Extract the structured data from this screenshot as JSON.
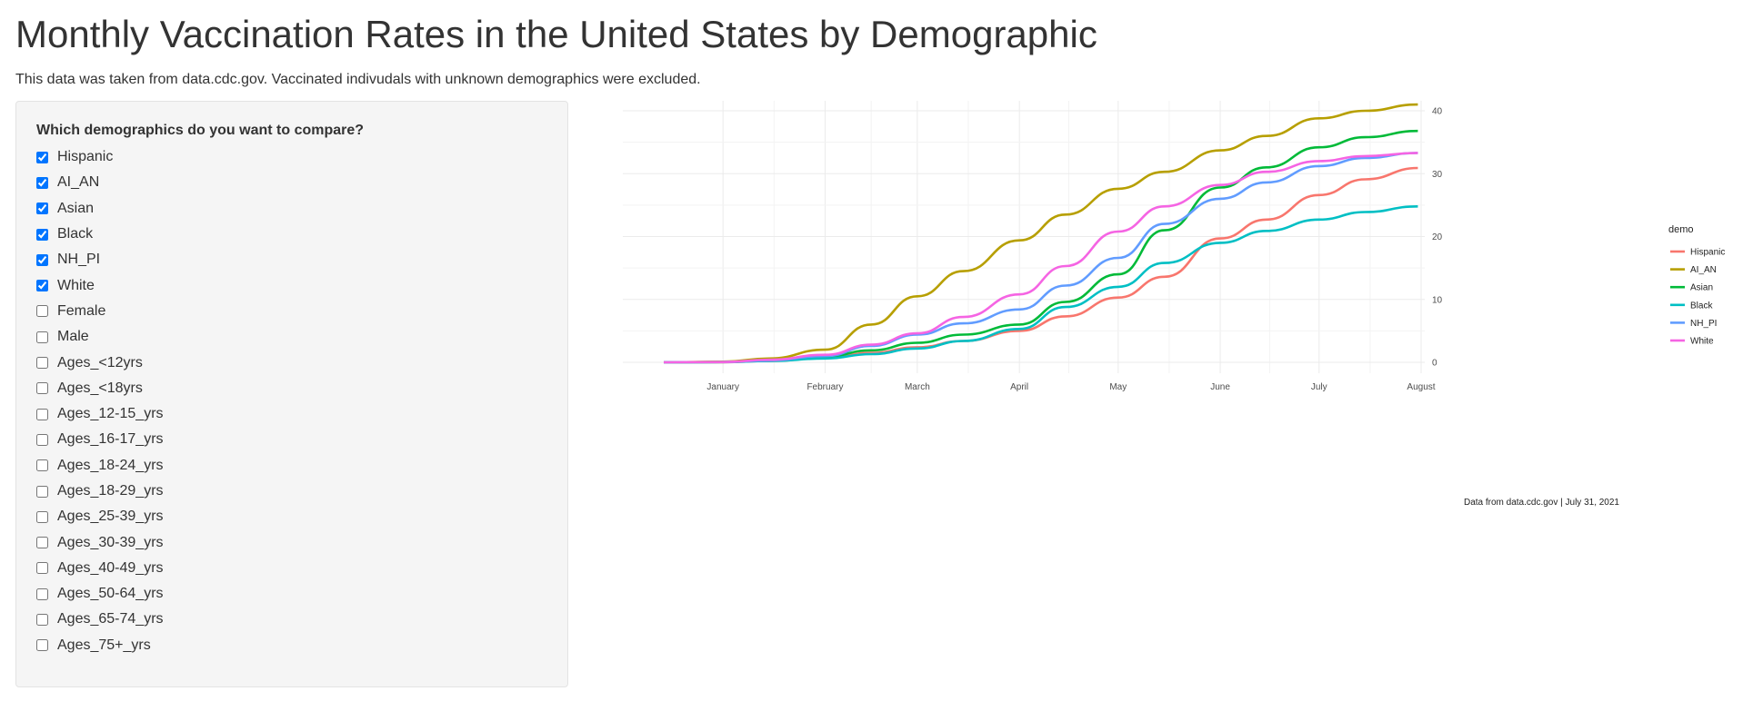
{
  "header": {
    "title": "Monthly Vaccination Rates in the United States by Demographic",
    "subtitle": "This data was taken from data.cdc.gov. Vaccinated indivudals with unknown demographics were excluded."
  },
  "sidebar": {
    "question": "Which demographics do you want to compare?",
    "options": [
      {
        "label": "Hispanic",
        "checked": true
      },
      {
        "label": "AI_AN",
        "checked": true
      },
      {
        "label": "Asian",
        "checked": true
      },
      {
        "label": "Black",
        "checked": true
      },
      {
        "label": "NH_PI",
        "checked": true
      },
      {
        "label": "White",
        "checked": true
      },
      {
        "label": "Female",
        "checked": false
      },
      {
        "label": "Male",
        "checked": false
      },
      {
        "label": "Ages_<12yrs",
        "checked": false
      },
      {
        "label": "Ages_<18yrs",
        "checked": false
      },
      {
        "label": "Ages_12-15_yrs",
        "checked": false
      },
      {
        "label": "Ages_16-17_yrs",
        "checked": false
      },
      {
        "label": "Ages_18-24_yrs",
        "checked": false
      },
      {
        "label": "Ages_18-29_yrs",
        "checked": false
      },
      {
        "label": "Ages_25-39_yrs",
        "checked": false
      },
      {
        "label": "Ages_30-39_yrs",
        "checked": false
      },
      {
        "label": "Ages_40-49_yrs",
        "checked": false
      },
      {
        "label": "Ages_50-64_yrs",
        "checked": false
      },
      {
        "label": "Ages_65-74_yrs",
        "checked": false
      },
      {
        "label": "Ages_75+_yrs",
        "checked": false
      }
    ]
  },
  "chart_data": {
    "type": "line",
    "title": "",
    "xlabel": "",
    "ylabel": "",
    "caption": "Data from data.cdc.gov | July 31, 2021",
    "legend_title": "demo",
    "legend_position": "right",
    "grid": true,
    "xlim": [
      "2020-12-14",
      "2021-07-31"
    ],
    "ylim": [
      0,
      41
    ],
    "x_ticks": [
      {
        "date": "2021-01-01",
        "label": "January"
      },
      {
        "date": "2021-02-01",
        "label": "February"
      },
      {
        "date": "2021-03-01",
        "label": "March"
      },
      {
        "date": "2021-04-01",
        "label": "April"
      },
      {
        "date": "2021-05-01",
        "label": "May"
      },
      {
        "date": "2021-06-01",
        "label": "June"
      },
      {
        "date": "2021-07-01",
        "label": "July"
      },
      {
        "date": "2021-08-01",
        "label": "August"
      }
    ],
    "y_ticks": [
      0,
      10,
      20,
      30,
      40
    ],
    "x": [
      "2020-12-14",
      "2021-01-01",
      "2021-01-15",
      "2021-02-01",
      "2021-02-15",
      "2021-03-01",
      "2021-03-15",
      "2021-04-01",
      "2021-04-15",
      "2021-05-01",
      "2021-05-15",
      "2021-06-01",
      "2021-06-15",
      "2021-07-01",
      "2021-07-15",
      "2021-07-31"
    ],
    "series": [
      {
        "name": "Hispanic",
        "color": "#f8766d",
        "values": [
          0,
          0.02,
          0.2,
          0.7,
          1.5,
          2.4,
          3.4,
          5.0,
          7.3,
          10.3,
          13.6,
          19.7,
          22.7,
          26.6,
          29.1,
          30.9
        ]
      },
      {
        "name": "AI_AN",
        "color": "#b79f00",
        "values": [
          0,
          0.1,
          0.6,
          2.0,
          6.0,
          10.5,
          14.5,
          19.4,
          23.5,
          27.6,
          30.3,
          33.7,
          36.0,
          38.8,
          40.0,
          41.0
        ]
      },
      {
        "name": "Asian",
        "color": "#00ba38",
        "values": [
          0,
          0.05,
          0.3,
          0.9,
          1.9,
          3.1,
          4.4,
          6.0,
          9.6,
          14.0,
          21.0,
          27.8,
          31.0,
          34.2,
          35.8,
          36.8
        ]
      },
      {
        "name": "Black",
        "color": "#00bfc4",
        "values": [
          0,
          0.03,
          0.2,
          0.6,
          1.3,
          2.2,
          3.4,
          5.3,
          8.8,
          12.0,
          15.8,
          19.0,
          20.9,
          22.7,
          23.9,
          24.8
        ]
      },
      {
        "name": "NH_PI",
        "color": "#619cff",
        "values": [
          0,
          0.05,
          0.3,
          1.0,
          2.6,
          4.4,
          6.2,
          8.4,
          12.2,
          16.6,
          22.0,
          26.0,
          28.6,
          31.2,
          32.5,
          33.3
        ]
      },
      {
        "name": "White",
        "color": "#f564e3",
        "values": [
          0,
          0.05,
          0.4,
          1.2,
          2.8,
          4.6,
          7.2,
          10.8,
          15.3,
          20.8,
          24.8,
          28.2,
          30.3,
          32.0,
          32.8,
          33.3
        ]
      }
    ]
  }
}
